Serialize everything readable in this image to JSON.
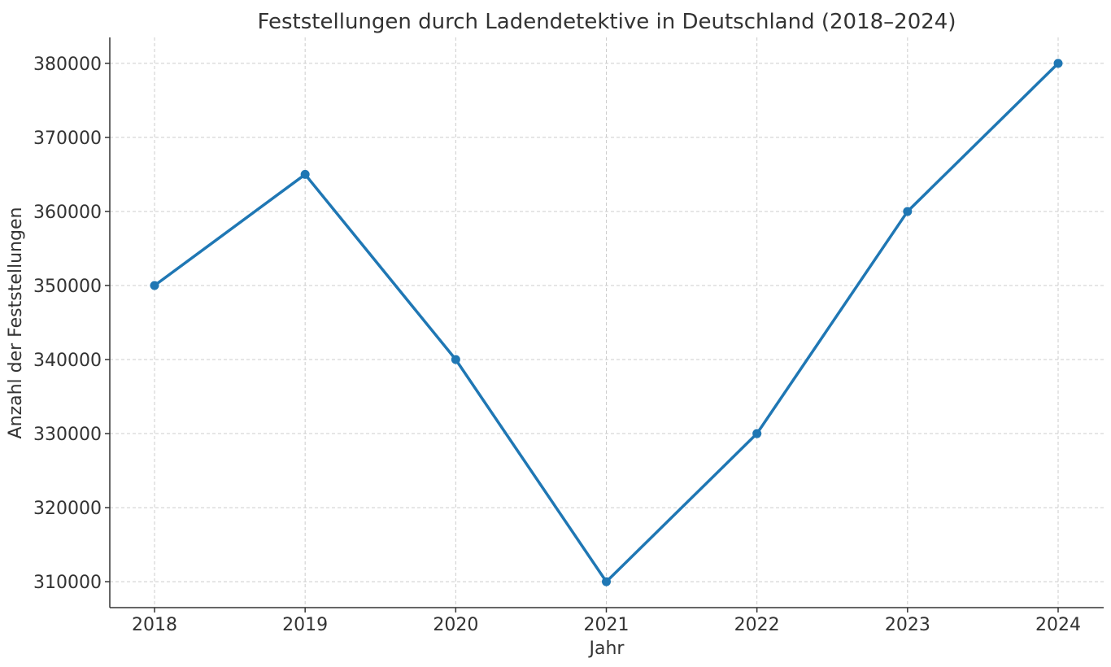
{
  "chart_data": {
    "type": "line",
    "title": "Feststellungen durch Ladendetektive in Deutschland (2018–2024)",
    "xlabel": "Jahr",
    "ylabel": "Anzahl der Feststellungen",
    "x": [
      "2018",
      "2019",
      "2020",
      "2021",
      "2022",
      "2023",
      "2024"
    ],
    "series": [
      {
        "values": [
          350000,
          365000,
          340000,
          310000,
          330000,
          360000,
          380000
        ],
        "color": "#1f77b4"
      }
    ],
    "y_ticks": [
      "310000",
      "320000",
      "330000",
      "340000",
      "350000",
      "360000",
      "370000",
      "380000"
    ],
    "ylim": [
      306500,
      383500
    ],
    "grid": true,
    "marker": "circle"
  }
}
